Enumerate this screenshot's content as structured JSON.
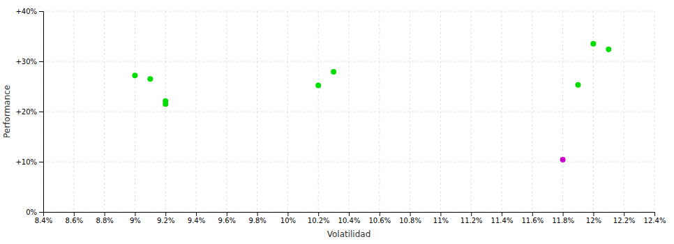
{
  "chart_data": {
    "type": "scatter",
    "xlabel": "Volatilidad",
    "ylabel": "Performance",
    "xlim": [
      0.084,
      0.124
    ],
    "ylim": [
      0.0,
      0.4
    ],
    "xticks": [
      {
        "value": 0.084,
        "label": "8.4%"
      },
      {
        "value": 0.086,
        "label": "8.6%"
      },
      {
        "value": 0.088,
        "label": "8.8%"
      },
      {
        "value": 0.09,
        "label": "9%"
      },
      {
        "value": 0.092,
        "label": "9.2%"
      },
      {
        "value": 0.094,
        "label": "9.4%"
      },
      {
        "value": 0.096,
        "label": "9.6%"
      },
      {
        "value": 0.098,
        "label": "9.8%"
      },
      {
        "value": 0.1,
        "label": "10%"
      },
      {
        "value": 0.102,
        "label": "10.2%"
      },
      {
        "value": 0.104,
        "label": "10.4%"
      },
      {
        "value": 0.106,
        "label": "10.6%"
      },
      {
        "value": 0.108,
        "label": "10.8%"
      },
      {
        "value": 0.11,
        "label": "11%"
      },
      {
        "value": 0.112,
        "label": "11.2%"
      },
      {
        "value": 0.114,
        "label": "11.4%"
      },
      {
        "value": 0.116,
        "label": "11.6%"
      },
      {
        "value": 0.118,
        "label": "11.8%"
      },
      {
        "value": 0.12,
        "label": "12%"
      },
      {
        "value": 0.122,
        "label": "12.2%"
      },
      {
        "value": 0.124,
        "label": "12.4%"
      }
    ],
    "yticks": [
      {
        "value": 0.0,
        "label": "0%"
      },
      {
        "value": 0.1,
        "label": "+10%"
      },
      {
        "value": 0.2,
        "label": "+20%"
      },
      {
        "value": 0.3,
        "label": "+30%"
      },
      {
        "value": 0.4,
        "label": "+40%"
      }
    ],
    "grid": true,
    "series": [
      {
        "color": "#00dd00",
        "x": [
          0.09,
          0.091,
          0.092,
          0.092,
          0.103,
          0.102,
          0.119,
          0.12,
          0.121
        ],
        "values": [
          0.272,
          0.265,
          0.221,
          0.215,
          0.279,
          0.252,
          0.253,
          0.335,
          0.324
        ]
      },
      {
        "color": "#cc00cc",
        "x": [
          0.118
        ],
        "values": [
          0.104
        ]
      }
    ]
  }
}
